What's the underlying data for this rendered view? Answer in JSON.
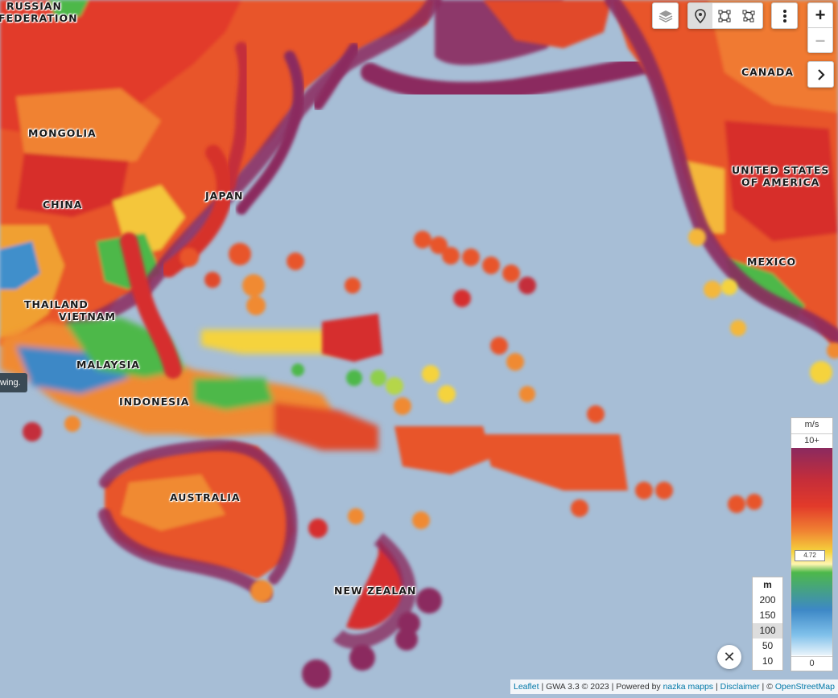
{
  "map": {
    "labels": [
      {
        "id": "russia",
        "lines": [
          "RUSSIAN",
          "FEDERATION"
        ]
      },
      {
        "id": "mongolia",
        "lines": [
          "MONGOLIA"
        ]
      },
      {
        "id": "china",
        "lines": [
          "CHINA"
        ]
      },
      {
        "id": "japan",
        "lines": [
          "JAPAN"
        ]
      },
      {
        "id": "thailand",
        "lines": [
          "THAILAND"
        ]
      },
      {
        "id": "vietnam",
        "lines": [
          "VIETNAM"
        ]
      },
      {
        "id": "malaysia",
        "lines": [
          "MALAYSIA"
        ]
      },
      {
        "id": "indonesia",
        "lines": [
          "INDONESIA"
        ]
      },
      {
        "id": "australia",
        "lines": [
          "AUSTRALIA"
        ]
      },
      {
        "id": "new-zealand",
        "lines": [
          "NEW ZEALAN"
        ]
      },
      {
        "id": "canada",
        "lines": [
          "CANADA"
        ]
      },
      {
        "id": "usa",
        "lines": [
          "UNITED STATES",
          "OF AMERICA"
        ]
      },
      {
        "id": "mexico",
        "lines": [
          "MEXICO"
        ]
      }
    ]
  },
  "tooltip": {
    "text": "wing."
  },
  "legend": {
    "unit": "m/s",
    "max_label": "10+",
    "min_label": "0",
    "marker_value": "4.72",
    "marker_fraction": 0.496
  },
  "scale": {
    "unit": "m",
    "options": [
      "200",
      "150",
      "100",
      "50",
      "10"
    ],
    "selected": "100"
  },
  "toolbar": {
    "icons": [
      "layers-icon",
      "map-pin-icon",
      "select-rectangle-icon",
      "select-polygon-icon",
      "more-vertical-icon"
    ]
  },
  "zoom": {
    "in": "+",
    "out": "–"
  },
  "panel_toggle": {
    "icon": "chevron-right-icon"
  },
  "close": {
    "label": "✕"
  },
  "attribution": {
    "leaflet": "Leaflet",
    "version": "GWA 3.3 © 2023",
    "powered": "Powered by",
    "nazka": "nazka mapps",
    "disclaimer": "Disclaimer",
    "osm": "OpenStreetMap",
    "copy": "©"
  },
  "colors": {
    "ocean": "#a7bed6",
    "max": "#8b2a5f",
    "high": "#d62d2d",
    "mid": "#f29a2e",
    "low": "#f5d33c",
    "green": "#4db84a",
    "blue": "#3d88c6",
    "min": "#e9f4fb"
  }
}
